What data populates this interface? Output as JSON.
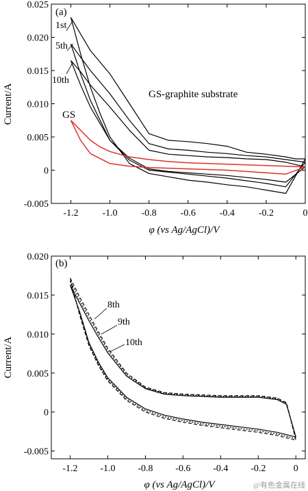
{
  "chart_data": [
    {
      "panel": "(a)",
      "type": "line",
      "xlabel": "φ (vs Ag/AgCl)/V",
      "ylabel": "Current/A",
      "xlim": [
        -1.3,
        0
      ],
      "ylim": [
        -0.005,
        0.025
      ],
      "xticks": [
        "-1.2",
        "-1.0",
        "-0.8",
        "-0.6",
        "-0.4",
        "-0.2",
        "0"
      ],
      "yticks": [
        "-0.005",
        "0",
        "0.005",
        "0.010",
        "0.015",
        "0.020",
        "0.025"
      ],
      "grid": false,
      "annotations": [
        "1st",
        "5th",
        "10th",
        "GS",
        "GS-graphite substrate"
      ],
      "series": [
        {
          "name": "1st",
          "color": "#000000",
          "x": [
            -1.2,
            -1.15,
            -1.1,
            -1.0,
            -0.9,
            -0.8,
            -0.7,
            -0.6,
            -0.5,
            -0.4,
            -0.3,
            -0.2,
            -0.1,
            -0.05,
            0,
            -0.1,
            -0.2,
            -0.3,
            -0.4,
            -0.5,
            -0.6,
            -0.7,
            -0.8,
            -0.9,
            -1.0,
            -1.05,
            -1.1,
            -1.15,
            -1.2
          ],
          "y": [
            0.023,
            0.0205,
            0.018,
            0.0145,
            0.01,
            0.0055,
            0.0045,
            0.0043,
            0.004,
            0.0036,
            0.0027,
            0.0024,
            0.002,
            0.0017,
            0.0017,
            -0.0035,
            -0.003,
            -0.0025,
            -0.0022,
            -0.0018,
            -0.0015,
            -0.001,
            -0.0005,
            0.001,
            0.005,
            0.0085,
            0.0125,
            0.0175,
            0.023
          ]
        },
        {
          "name": "5th",
          "color": "#000000",
          "x": [
            -1.2,
            -1.15,
            -1.1,
            -1.0,
            -0.9,
            -0.8,
            -0.7,
            -0.6,
            -0.5,
            -0.4,
            -0.3,
            -0.2,
            -0.1,
            0,
            -0.1,
            -0.2,
            -0.3,
            -0.4,
            -0.5,
            -0.6,
            -0.7,
            -0.8,
            -0.9,
            -1.0,
            -1.05,
            -1.1,
            -1.15,
            -1.2
          ],
          "y": [
            0.019,
            0.017,
            0.015,
            0.0115,
            0.0075,
            0.004,
            0.0032,
            0.003,
            0.0027,
            0.0025,
            0.0022,
            0.002,
            0.0016,
            0.0012,
            -0.0025,
            -0.002,
            -0.0016,
            -0.0012,
            -0.0009,
            -0.0006,
            -0.0003,
            0.0,
            0.0015,
            0.0045,
            0.0075,
            0.0105,
            0.0145,
            0.019
          ]
        },
        {
          "name": "10th",
          "color": "#000000",
          "x": [
            -1.2,
            -1.15,
            -1.1,
            -1.0,
            -0.9,
            -0.8,
            -0.7,
            -0.6,
            -0.5,
            -0.4,
            -0.3,
            -0.2,
            -0.1,
            0,
            -0.1,
            -0.2,
            -0.3,
            -0.4,
            -0.5,
            -0.6,
            -0.7,
            -0.8,
            -0.9,
            -1.0,
            -1.05,
            -1.1,
            -1.15,
            -1.2
          ],
          "y": [
            0.0165,
            0.0148,
            0.0128,
            0.0095,
            0.006,
            0.003,
            0.0024,
            0.0022,
            0.002,
            0.0019,
            0.0017,
            0.0016,
            0.0012,
            0.0005,
            -0.0018,
            -0.0014,
            -0.0011,
            -0.0008,
            -0.0006,
            -0.0004,
            -0.0002,
            0.0002,
            0.0018,
            0.0045,
            0.007,
            0.0095,
            0.0128,
            0.0165
          ]
        },
        {
          "name": "GS",
          "color": "#e0302a",
          "x": [
            -1.2,
            -1.15,
            -1.1,
            -1.05,
            -1.0,
            -0.9,
            -0.8,
            -0.7,
            -0.6,
            -0.5,
            -0.4,
            -0.3,
            -0.2,
            -0.1,
            0,
            -0.1,
            -0.2,
            -0.3,
            -0.4,
            -0.5,
            -0.6,
            -0.7,
            -0.8,
            -0.9,
            -1.0,
            -1.1,
            -1.15,
            -1.2
          ],
          "y": [
            0.0075,
            0.006,
            0.0045,
            0.0035,
            0.0028,
            0.002,
            0.0016,
            0.0013,
            0.0011,
            0.001,
            0.0009,
            0.0008,
            0.0007,
            0.0006,
            0.0005,
            -0.0006,
            -0.0004,
            -0.0002,
            0.0,
            0.0001,
            0.0002,
            0.0003,
            0.0004,
            0.0006,
            0.001,
            0.0025,
            0.0045,
            0.0075
          ]
        }
      ]
    },
    {
      "panel": "(b)",
      "type": "line",
      "xlabel": "φ (vs Ag/AgCl)/V",
      "ylabel": "Current/A",
      "xlim": [
        -1.3,
        0.05
      ],
      "ylim": [
        -0.006,
        0.02
      ],
      "xticks": [
        "-1.2",
        "-1.0",
        "-0.8",
        "-0.6",
        "-0.4",
        "-0.2",
        "0"
      ],
      "yticks": [
        "-0.005",
        "0",
        "0.005",
        "0.010",
        "0.015",
        "0.020"
      ],
      "grid": false,
      "annotations": [
        "8th",
        "9th",
        "10th"
      ],
      "series": [
        {
          "name": "8th",
          "color": "#000000",
          "dash": "5,3",
          "x": [
            -1.2,
            -1.15,
            -1.1,
            -1.05,
            -1.0,
            -0.9,
            -0.8,
            -0.7,
            -0.6,
            -0.5,
            -0.4,
            -0.3,
            -0.2,
            -0.1,
            -0.05,
            0,
            -0.05,
            -0.1,
            -0.2,
            -0.3,
            -0.4,
            -0.5,
            -0.6,
            -0.7,
            -0.8,
            -0.9,
            -1.0,
            -1.05,
            -1.1,
            -1.15,
            -1.2
          ],
          "y": [
            0.0172,
            0.0148,
            0.0125,
            0.0103,
            0.0082,
            0.005,
            0.0032,
            0.0025,
            0.0023,
            0.0022,
            0.0021,
            0.0021,
            0.0021,
            0.0018,
            0.0012,
            -0.0036,
            -0.0033,
            -0.003,
            -0.0026,
            -0.0023,
            -0.002,
            -0.0017,
            -0.0013,
            -0.0008,
            0.0,
            0.0015,
            0.004,
            0.006,
            0.0085,
            0.0125,
            0.0172
          ]
        },
        {
          "name": "9th",
          "color": "#000000",
          "dash": "2,2",
          "x": [
            -1.2,
            -1.15,
            -1.1,
            -1.05,
            -1.0,
            -0.9,
            -0.8,
            -0.7,
            -0.6,
            -0.5,
            -0.4,
            -0.3,
            -0.2,
            -0.1,
            -0.05,
            0,
            -0.05,
            -0.1,
            -0.2,
            -0.3,
            -0.4,
            -0.5,
            -0.6,
            -0.7,
            -0.8,
            -0.9,
            -1.0,
            -1.05,
            -1.1,
            -1.15,
            -1.2
          ],
          "y": [
            0.0168,
            0.0144,
            0.0121,
            0.01,
            0.0079,
            0.0048,
            0.0031,
            0.0024,
            0.0022,
            0.0021,
            0.002,
            0.002,
            0.002,
            0.0017,
            0.0011,
            -0.0034,
            -0.0031,
            -0.0028,
            -0.0024,
            -0.0021,
            -0.0018,
            -0.0015,
            -0.0011,
            -0.0006,
            0.0002,
            0.0017,
            0.0042,
            0.0062,
            0.0087,
            0.0127,
            0.0168
          ]
        },
        {
          "name": "10th",
          "color": "#000000",
          "dash": "",
          "x": [
            -1.2,
            -1.15,
            -1.1,
            -1.05,
            -1.0,
            -0.9,
            -0.8,
            -0.7,
            -0.6,
            -0.5,
            -0.4,
            -0.3,
            -0.2,
            -0.1,
            -0.05,
            0,
            -0.05,
            -0.1,
            -0.2,
            -0.3,
            -0.4,
            -0.5,
            -0.6,
            -0.7,
            -0.8,
            -0.9,
            -1.0,
            -1.05,
            -1.1,
            -1.15,
            -1.2
          ],
          "y": [
            0.0163,
            0.014,
            0.0117,
            0.0096,
            0.0076,
            0.0046,
            0.003,
            0.0023,
            0.0021,
            0.002,
            0.0019,
            0.0019,
            0.0019,
            0.0016,
            0.001,
            -0.0032,
            -0.0029,
            -0.0026,
            -0.0022,
            -0.0019,
            -0.0016,
            -0.0013,
            -0.0009,
            -0.0004,
            0.0004,
            0.0019,
            0.0044,
            0.0064,
            0.0089,
            0.0129,
            0.0163
          ]
        }
      ]
    }
  ],
  "watermark": "@有色金属在线"
}
